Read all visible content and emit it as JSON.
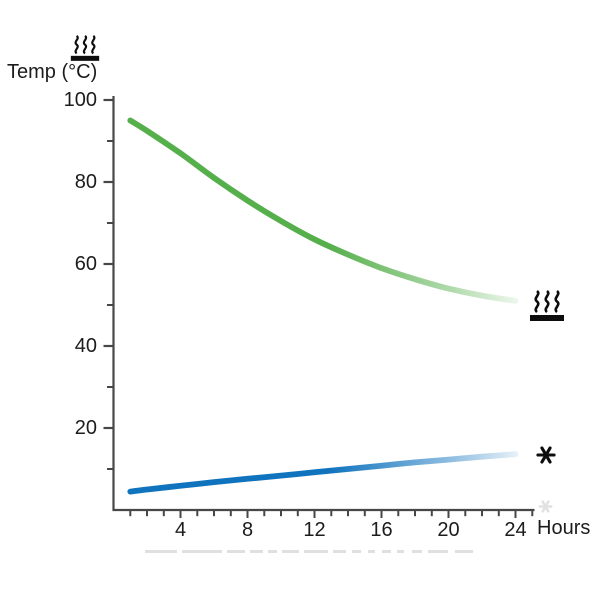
{
  "colors": {
    "hot_line": "#55af4b",
    "cold_line": "#1073be",
    "axis": "#474747",
    "text": "#1c1c1c",
    "icon_black": "#0d0d0d",
    "faint_icon": "#c9c9c9",
    "artifact": "#e0e0e0"
  },
  "icons": {
    "y_axis_top": "hot-surface-icon",
    "hot_line_end": "hot-surface-icon",
    "cold_line_end": "snowflake-icon",
    "below_cold_line_end": "faint-snowflake-icon"
  },
  "chart_data": {
    "type": "line",
    "title": "",
    "xlabel": "Hours",
    "ylabel": "Temp (°C)",
    "xlim": [
      0,
      25
    ],
    "ylim": [
      0,
      100
    ],
    "grid": false,
    "x_ticks": [
      4,
      8,
      12,
      16,
      20,
      24
    ],
    "x_minor_tick_interval": 1,
    "y_ticks": [
      100,
      80,
      60,
      40,
      20
    ],
    "y_minor_ticks": [
      90,
      70,
      50,
      30,
      10
    ],
    "legend": "identified by icons at line ends (hot-surface = cooling item, snowflake = warming item)",
    "series": [
      {
        "name": "hot-surface-line",
        "icon": "hot-surface",
        "color": "#55af4b",
        "fades_to_white_at_end": true,
        "x": [
          1,
          2,
          4,
          6,
          8,
          10,
          12,
          14,
          16,
          18,
          20,
          22,
          24
        ],
        "values": [
          95,
          92.5,
          87,
          81,
          75.5,
          70.5,
          66,
          62.3,
          59,
          56.3,
          54,
          52.3,
          51
        ]
      },
      {
        "name": "snowflake-line",
        "icon": "snowflake",
        "color": "#1073be",
        "fades_to_white_at_end": true,
        "x": [
          1,
          2,
          4,
          6,
          8,
          10,
          12,
          14,
          16,
          18,
          20,
          22,
          24
        ],
        "values": [
          4.5,
          5,
          5.9,
          6.8,
          7.6,
          8.4,
          9.2,
          10,
          10.8,
          11.6,
          12.3,
          13,
          13.6
        ]
      }
    ]
  }
}
